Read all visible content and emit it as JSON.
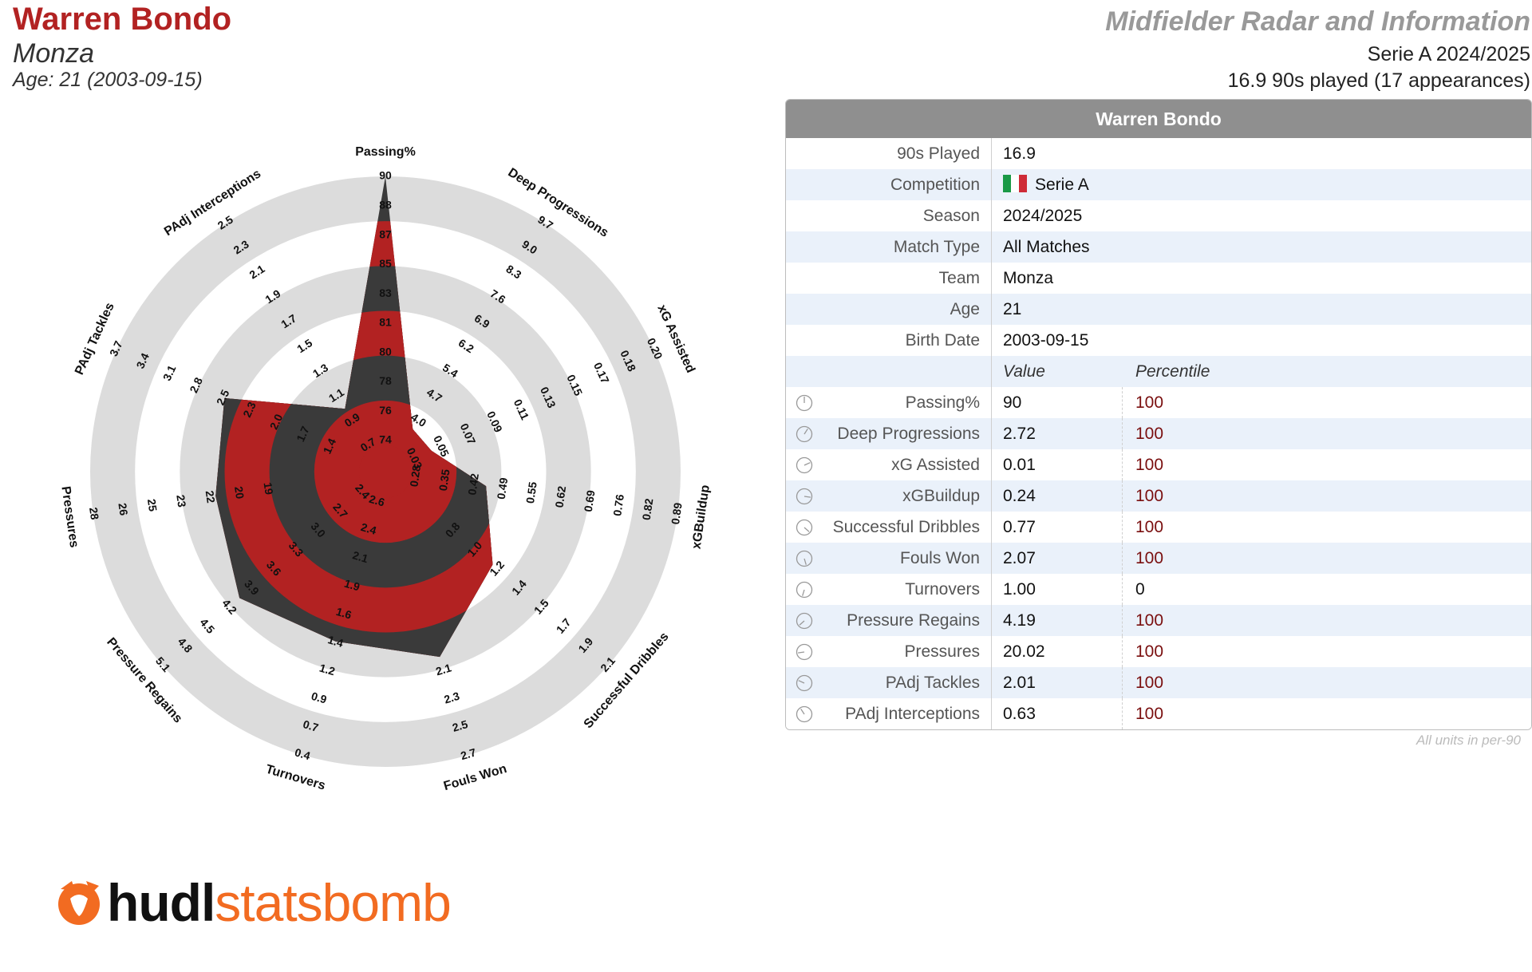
{
  "header": {
    "player_name": "Warren Bondo",
    "team": "Monza",
    "age_line": "Age: 21 (2003-09-15)",
    "title": "Midfielder Radar and Information",
    "season_line": "Serie A 2024/2025",
    "played_line": "16.9 90s played (17 appearances)"
  },
  "table": {
    "header": "Warren Bondo",
    "info": [
      {
        "label": "90s Played",
        "value": "16.9"
      },
      {
        "label": "Competition",
        "value": "Serie A"
      },
      {
        "label": "Season",
        "value": "2024/2025"
      },
      {
        "label": "Match Type",
        "value": "All Matches"
      },
      {
        "label": "Team",
        "value": "Monza"
      },
      {
        "label": "Age",
        "value": "21"
      },
      {
        "label": "Birth Date",
        "value": "2003-09-15"
      }
    ],
    "col_value": "Value",
    "col_percentile": "Percentile",
    "metrics": [
      {
        "label": "Passing%",
        "value": "90",
        "percentile": "100"
      },
      {
        "label": "Deep Progressions",
        "value": "2.72",
        "percentile": "100"
      },
      {
        "label": "xG Assisted",
        "value": "0.01",
        "percentile": "100"
      },
      {
        "label": "xGBuildup",
        "value": "0.24",
        "percentile": "100"
      },
      {
        "label": "Successful Dribbles",
        "value": "0.77",
        "percentile": "100"
      },
      {
        "label": "Fouls Won",
        "value": "2.07",
        "percentile": "100"
      },
      {
        "label": "Turnovers",
        "value": "1.00",
        "percentile": "0"
      },
      {
        "label": "Pressure Regains",
        "value": "4.19",
        "percentile": "100"
      },
      {
        "label": "Pressures",
        "value": "20.02",
        "percentile": "100"
      },
      {
        "label": "PAdj Tackles",
        "value": "2.01",
        "percentile": "100"
      },
      {
        "label": "PAdj Interceptions",
        "value": "0.63",
        "percentile": "100"
      }
    ],
    "units_note": "All units in per-90"
  },
  "colors": {
    "accent": "#b22222",
    "dark_band": "#3a3a3a",
    "ring": "#dcdcdc",
    "flag": [
      "#1a9946",
      "#ffffff",
      "#ce2b37"
    ]
  },
  "logo": {
    "part1": "hudl",
    "part2": "statsbomb"
  },
  "chart_data": {
    "type": "radar",
    "axes": [
      {
        "name": "Passing%",
        "ticks": [
          "74",
          "76",
          "78",
          "80",
          "81",
          "83",
          "85",
          "87",
          "88",
          "90"
        ],
        "value_fraction": 1.0
      },
      {
        "name": "Deep Progressions",
        "ticks": [
          "4.0",
          "4.7",
          "5.4",
          "6.2",
          "6.9",
          "7.6",
          "8.3",
          "9.0",
          "9.7"
        ],
        "value_fraction": 0.09
      },
      {
        "name": "xG Assisted",
        "ticks": [
          "0.03",
          "0.05",
          "0.07",
          "0.09",
          "0.11",
          "0.13",
          "0.15",
          "0.17",
          "0.18",
          "0.20"
        ],
        "value_fraction": 0.09
      },
      {
        "name": "xGBuildup",
        "ticks": [
          "0.28",
          "0.35",
          "0.42",
          "0.49",
          "0.55",
          "0.62",
          "0.69",
          "0.76",
          "0.82",
          "0.89"
        ],
        "value_fraction": 0.28
      },
      {
        "name": "Successful Dribbles",
        "ticks": [
          "0.8",
          "1.0",
          "1.2",
          "1.4",
          "1.5",
          "1.7",
          "1.9",
          "2.1"
        ],
        "value_fraction": 0.43
      },
      {
        "name": "Fouls Won",
        "ticks": [
          "2.1",
          "2.3",
          "2.5",
          "2.7"
        ],
        "value_fraction": 0.62
      },
      {
        "name": "Turnovers",
        "ticks": [
          "2.6",
          "2.4",
          "2.1",
          "1.9",
          "1.6",
          "1.4",
          "1.2",
          "0.9",
          "0.7",
          "0.4"
        ],
        "value_fraction": 0.56
      },
      {
        "name": "Pressure Regains",
        "ticks": [
          "2.4",
          "2.7",
          "3.0",
          "3.3",
          "3.6",
          "3.9",
          "4.2",
          "4.5",
          "4.8",
          "5.1"
        ],
        "value_fraction": 0.62
      },
      {
        "name": "Pressures",
        "ticks": [
          "19",
          "20",
          "22",
          "23",
          "25",
          "26",
          "28"
        ],
        "value_fraction": 0.54
      },
      {
        "name": "PAdj Tackles",
        "ticks": [
          "1.4",
          "1.7",
          "2.0",
          "2.3",
          "2.5",
          "2.8",
          "3.1",
          "3.4",
          "3.7"
        ],
        "value_fraction": 0.56
      },
      {
        "name": "PAdj Interceptions",
        "ticks": [
          "0.7",
          "0.9",
          "1.1",
          "1.3",
          "1.5",
          "1.7",
          "1.9",
          "2.1",
          "2.3",
          "2.5"
        ],
        "value_fraction": 0.18
      }
    ]
  }
}
